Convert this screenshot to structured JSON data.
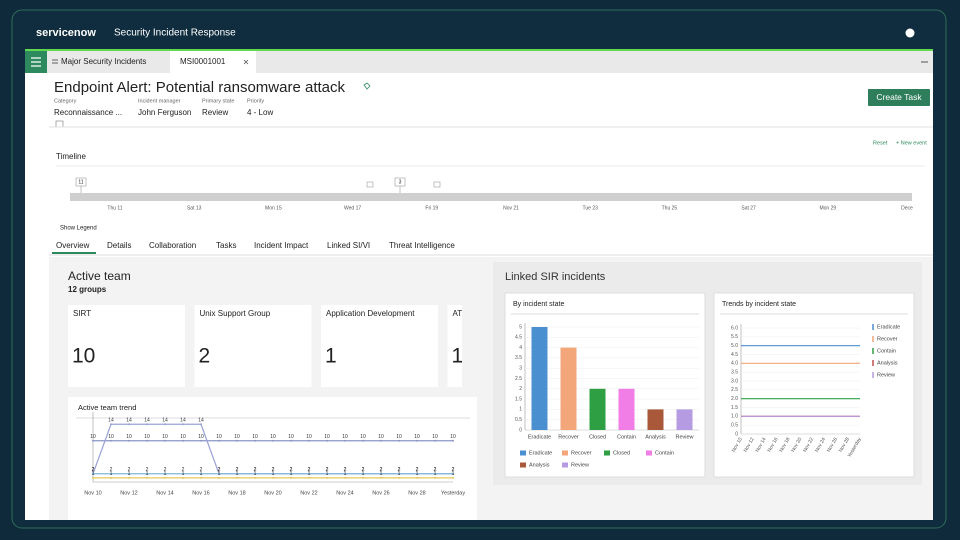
{
  "header": {
    "brand": "servicenow",
    "app": "Security Incident Response"
  },
  "tabs": [
    "Major Security Incidents",
    "MSI0001001"
  ],
  "record": {
    "title": "Endpoint Alert: Potential ransomware attack",
    "fields": [
      {
        "label": "Category",
        "value": "Reconnaissance ..."
      },
      {
        "label": "Incident manager",
        "value": "John Ferguson"
      },
      {
        "label": "Primary state",
        "value": "Review"
      },
      {
        "label": "Priority",
        "value": "4 - Low"
      }
    ]
  },
  "actions": {
    "create_task": "Create Task",
    "reset": "Reset",
    "new_event": "+ New event"
  },
  "timeline": {
    "label": "Timeline",
    "dates": [
      "Thu 11",
      "Sat 13",
      "Mon 15",
      "Wed 17",
      "Fri 19",
      "Nov 21",
      "Tue 23",
      "Thu 25",
      "Sat 27",
      "Mon 29",
      "Dece"
    ],
    "markers": [
      11,
      3
    ],
    "show_legend": "Show Legend"
  },
  "sections": [
    "Overview",
    "Details",
    "Collaboration",
    "Tasks",
    "Incident Impact",
    "Linked SI/VI",
    "Threat Intelligence"
  ],
  "active_team": {
    "title": "Active team",
    "subtitle": "12 groups",
    "groups": [
      {
        "name": "SIRT",
        "count": 10
      },
      {
        "name": "Unix Support Group",
        "count": 2
      },
      {
        "name": "Application Development",
        "count": 1
      },
      {
        "name": "AT",
        "count": 1
      }
    ],
    "trend": {
      "type": "line",
      "title": "Active team trend",
      "categories": [
        "Nov 10",
        null,
        "Nov 12",
        null,
        "Nov 14",
        null,
        "Nov 16",
        null,
        "Nov 18",
        null,
        "Nov 20",
        null,
        "Nov 22",
        null,
        "Nov 24",
        null,
        "Nov 26",
        null,
        "Nov 28",
        null,
        "Yesterday"
      ],
      "ylim": [
        0,
        16
      ],
      "data_labels": true,
      "series": [
        {
          "color": "#8a94c8",
          "values": [
            10,
            10,
            10,
            10,
            10,
            10,
            10,
            10,
            10,
            10,
            10,
            10,
            10,
            10,
            10,
            10,
            10,
            10,
            10,
            10,
            10
          ]
        },
        {
          "color": "#9aa2d6",
          "values": [
            2,
            14,
            14,
            14,
            14,
            14,
            14,
            2,
            2,
            2,
            2,
            2,
            2,
            2,
            2,
            2,
            2,
            2,
            2,
            2,
            2
          ]
        },
        {
          "color": "#7fb8d8",
          "values": [
            2,
            2,
            2,
            2,
            2,
            2,
            2,
            2,
            2,
            2,
            2,
            2,
            2,
            2,
            2,
            2,
            2,
            2,
            2,
            2,
            2
          ]
        },
        {
          "color": "#e3c85a",
          "values": [
            1,
            1,
            1,
            1,
            1,
            1,
            1,
            1,
            1,
            1,
            1,
            1,
            1,
            1,
            1,
            1,
            1,
            1,
            1,
            1,
            1
          ]
        }
      ]
    }
  },
  "linked": {
    "title": "Linked SIR incidents",
    "by_state": {
      "type": "bar",
      "title": "By incident state",
      "categories": [
        "Eradicate",
        "Recover",
        "Closed",
        "Contain",
        "Analysis",
        "Review"
      ],
      "values": [
        5,
        4,
        2,
        2,
        1,
        1
      ],
      "colors": [
        "#4a8fd0",
        "#f2a679",
        "#2ea043",
        "#f07ee6",
        "#a9583a",
        "#b49be2"
      ],
      "ylim": [
        0,
        5
      ],
      "yticks": [
        0,
        0.5,
        1,
        1.5,
        2,
        2.5,
        3,
        3.5,
        4,
        4.5,
        5
      ],
      "grid": true
    },
    "trends": {
      "type": "line",
      "title": "Trends by incident state",
      "categories": [
        "Nov 10",
        "Nov 12",
        "Nov 14",
        "Nov 16",
        "Nov 18",
        "Nov 20",
        "Nov 22",
        "Nov 24",
        "Nov 26",
        "Nov 28",
        "Yesterday"
      ],
      "ylim": [
        0,
        6
      ],
      "yticks": [
        0,
        0.5,
        {
          "value": 1,
          "label": "1.0"
        },
        1.5,
        {
          "value": 2,
          "label": "2.0"
        },
        2.5,
        {
          "value": 3,
          "label": "3.0"
        },
        3.5,
        {
          "value": 4,
          "label": "4.0"
        },
        4.5,
        {
          "value": 5,
          "label": "5.0"
        },
        5.5,
        {
          "value": 6,
          "label": "6.0"
        }
      ],
      "grid": true,
      "series": [
        {
          "name": "Eradicate",
          "color": "#4a8fd0",
          "values": [
            5,
            5,
            5,
            5,
            5,
            5,
            5,
            5,
            5,
            5,
            5
          ]
        },
        {
          "name": "Recover",
          "color": "#f2a679",
          "values": [
            4,
            4,
            4,
            4,
            4,
            4,
            4,
            4,
            4,
            4,
            4
          ]
        },
        {
          "name": "Contain",
          "color": "#2ea043",
          "values": [
            2,
            2,
            2,
            2,
            2,
            2,
            2,
            2,
            2,
            2,
            2
          ]
        },
        {
          "name": "Analysis",
          "color": "#c0504d",
          "values": [
            1,
            1,
            1,
            1,
            1,
            1,
            1,
            1,
            1,
            1,
            1
          ]
        },
        {
          "name": "Review",
          "color": "#b49be2",
          "values": [
            1,
            1,
            1,
            1,
            1,
            1,
            1,
            1,
            1,
            1,
            1
          ]
        }
      ]
    }
  }
}
